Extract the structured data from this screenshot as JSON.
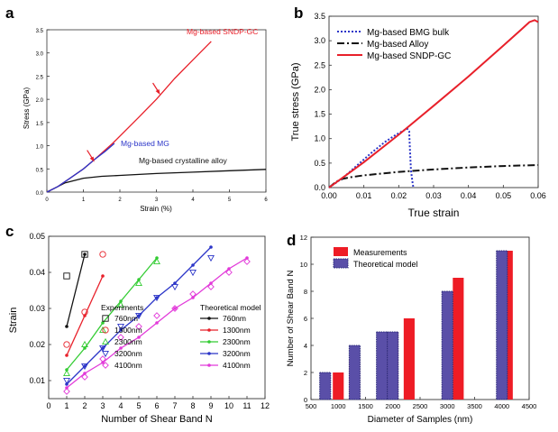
{
  "panels": {
    "a": {
      "label": "a",
      "xlabel": "Strain (%)",
      "ylabel": "Stress (GPa)"
    },
    "b": {
      "label": "b",
      "xlabel": "True strain",
      "ylabel": "True stress (GPa)"
    },
    "c": {
      "label": "c",
      "xlabel": "Number of Shear Band N",
      "ylabel": "Strain",
      "legend_exp_title": "Experiments",
      "legend_theo_title": "Theoretical model"
    },
    "d": {
      "label": "d",
      "xlabel": "Diameter of Samples (nm)",
      "ylabel": "Number of Shear Band N"
    }
  },
  "colors": {
    "red": "#e8202a",
    "blue": "#2b35c8",
    "black": "#111111",
    "green": "#33cc33",
    "magenta": "#e23ad9"
  },
  "chart_data": [
    {
      "id": "a",
      "type": "line",
      "xlim": [
        0,
        6
      ],
      "ylim": [
        0,
        3.5
      ],
      "xticks": [
        0,
        1,
        2,
        3,
        4,
        5,
        6
      ],
      "yticks": [
        0,
        0.5,
        1.0,
        1.5,
        2.0,
        2.5,
        3.0,
        3.5
      ],
      "series": [
        {
          "name": "Mg-based SNDP-GC",
          "color": "#e8202a",
          "x": [
            0,
            0.3,
            0.6,
            1.0,
            1.3,
            1.8,
            2.5,
            3.0,
            3.5,
            4.0,
            4.5
          ],
          "y": [
            0,
            0.12,
            0.28,
            0.5,
            0.7,
            1.05,
            1.6,
            2.0,
            2.45,
            2.85,
            3.25
          ]
        },
        {
          "name": "Mg-based MG",
          "color": "#2b35c8",
          "x": [
            0,
            0.3,
            0.6,
            1.0,
            1.3,
            1.6,
            1.85
          ],
          "y": [
            0,
            0.12,
            0.28,
            0.5,
            0.7,
            0.88,
            1.05
          ]
        },
        {
          "name": "Mg-based crystalline alloy",
          "color": "#111111",
          "x": [
            0,
            0.2,
            0.5,
            1.0,
            1.5,
            2.0,
            3.0,
            4.0,
            5.0,
            6.0
          ],
          "y": [
            0,
            0.08,
            0.2,
            0.3,
            0.34,
            0.36,
            0.4,
            0.43,
            0.46,
            0.49
          ]
        }
      ],
      "arrows": [
        {
          "x": 1.3,
          "y": 0.65
        },
        {
          "x": 3.1,
          "y": 2.1
        }
      ]
    },
    {
      "id": "b",
      "type": "line",
      "xlim": [
        0,
        0.06
      ],
      "ylim": [
        0,
        3.5
      ],
      "xticks": [
        0.0,
        0.01,
        0.02,
        0.03,
        0.04,
        0.05,
        0.06
      ],
      "yticks": [
        0.0,
        0.5,
        1.0,
        1.5,
        2.0,
        2.5,
        3.0,
        3.5
      ],
      "legend": "top-left",
      "series": [
        {
          "name": "Mg-based BMG bulk",
          "color": "#2b35c8",
          "style": "dotted",
          "x": [
            0,
            0.004,
            0.008,
            0.012,
            0.016,
            0.019,
            0.021,
            0.022,
            0.0225,
            0.023,
            0.0232,
            0.0235,
            0.024,
            0.0242
          ],
          "y": [
            0,
            0.2,
            0.45,
            0.7,
            0.93,
            1.07,
            1.15,
            1.19,
            1.2,
            1.15,
            0.8,
            0.35,
            0.08,
            0
          ]
        },
        {
          "name": "Mg-based Alloy",
          "color": "#111111",
          "style": "dashdot",
          "x": [
            0,
            0.002,
            0.004,
            0.006,
            0.01,
            0.02,
            0.03,
            0.04,
            0.05,
            0.06
          ],
          "y": [
            0,
            0.12,
            0.18,
            0.21,
            0.25,
            0.32,
            0.37,
            0.41,
            0.44,
            0.46
          ]
        },
        {
          "name": "Mg-based SNDP-GC",
          "color": "#e8202a",
          "style": "solid",
          "x": [
            0,
            0.01,
            0.02,
            0.03,
            0.04,
            0.05,
            0.055,
            0.0575,
            0.059,
            0.06
          ],
          "y": [
            0,
            0.52,
            1.08,
            1.67,
            2.27,
            2.9,
            3.22,
            3.38,
            3.42,
            3.38
          ]
        }
      ]
    },
    {
      "id": "c",
      "type": "scatter",
      "xlim": [
        0,
        12
      ],
      "ylim": [
        0.005,
        0.05
      ],
      "xticks": [
        0,
        1,
        2,
        3,
        4,
        5,
        6,
        7,
        8,
        9,
        10,
        11,
        12
      ],
      "yticks": [
        0.01,
        0.02,
        0.03,
        0.04,
        0.05
      ],
      "series": [
        {
          "name": "760nm",
          "color": "#111111",
          "marker": "square",
          "exp_x": [
            1,
            2
          ],
          "exp_y": [
            0.039,
            0.045
          ],
          "model_x": [
            1,
            2
          ],
          "model_y": [
            0.025,
            0.045
          ]
        },
        {
          "name": "1300nm",
          "color": "#e8202a",
          "marker": "circle",
          "exp_x": [
            1,
            2,
            3
          ],
          "exp_y": [
            0.02,
            0.029,
            0.045
          ],
          "model_x": [
            1,
            2,
            3
          ],
          "model_y": [
            0.017,
            0.028,
            0.039
          ]
        },
        {
          "name": "2300nm",
          "color": "#33cc33",
          "marker": "triangle",
          "exp_x": [
            1,
            2,
            3,
            4,
            5,
            6
          ],
          "exp_y": [
            0.012,
            0.02,
            0.024,
            0.031,
            0.037,
            0.043
          ],
          "model_x": [
            1,
            2,
            3,
            4,
            5,
            6
          ],
          "model_y": [
            0.013,
            0.019,
            0.026,
            0.032,
            0.038,
            0.044
          ]
        },
        {
          "name": "3200nm",
          "color": "#2b35c8",
          "marker": "triangle-down",
          "exp_x": [
            1,
            2,
            3,
            4,
            5,
            6,
            7,
            8,
            9
          ],
          "exp_y": [
            0.01,
            0.014,
            0.019,
            0.025,
            0.028,
            0.033,
            0.036,
            0.04,
            0.044
          ],
          "model_x": [
            1,
            2,
            3,
            4,
            5,
            6,
            7,
            8,
            9
          ],
          "model_y": [
            0.009,
            0.014,
            0.019,
            0.024,
            0.028,
            0.033,
            0.037,
            0.042,
            0.047
          ]
        },
        {
          "name": "4100nm",
          "color": "#e23ad9",
          "marker": "diamond",
          "exp_x": [
            1,
            2,
            3,
            4,
            5,
            6,
            7,
            8,
            9,
            10,
            11
          ],
          "exp_y": [
            0.007,
            0.011,
            0.016,
            0.022,
            0.025,
            0.028,
            0.03,
            0.034,
            0.036,
            0.04,
            0.043
          ],
          "model_x": [
            1,
            2,
            3,
            4,
            5,
            6,
            7,
            8,
            9,
            10,
            11
          ],
          "model_y": [
            0.008,
            0.012,
            0.015,
            0.019,
            0.022,
            0.026,
            0.03,
            0.033,
            0.037,
            0.041,
            0.044
          ]
        }
      ],
      "legend_labels_exp": [
        "760nm",
        "1300nm",
        "2300nm",
        "3200nm",
        "4100nm"
      ],
      "legend_labels_theo": [
        "760nm",
        "1300nm",
        "2300nm",
        "3200nm",
        "4100nm"
      ]
    },
    {
      "id": "d",
      "type": "bar",
      "xlim": [
        500,
        4500
      ],
      "ylim": [
        0,
        12
      ],
      "xticks": [
        500,
        1000,
        1500,
        2000,
        2500,
        3000,
        3500,
        4000,
        4500
      ],
      "yticks": [
        0,
        2,
        4,
        6,
        8,
        10,
        12
      ],
      "legend": "top-left",
      "series": [
        {
          "name": "Measurements",
          "color": "#ee1c25",
          "x": [
            1000,
            1300,
            2000,
            2300,
            3200,
            4100
          ],
          "values": [
            2,
            3,
            5,
            6,
            9,
            11
          ]
        },
        {
          "name": "Theoretical model",
          "color": "#5a4fa8",
          "x": [
            760,
            1300,
            1800,
            2000,
            3000,
            4000
          ],
          "values": [
            2,
            4,
            5,
            5,
            8,
            11
          ]
        }
      ]
    }
  ]
}
